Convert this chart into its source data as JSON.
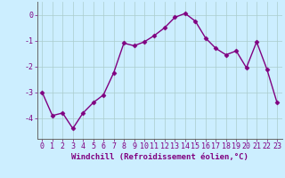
{
  "x": [
    0,
    1,
    2,
    3,
    4,
    5,
    6,
    7,
    8,
    9,
    10,
    11,
    12,
    13,
    14,
    15,
    16,
    17,
    18,
    19,
    20,
    21,
    22,
    23
  ],
  "y": [
    -3.0,
    -3.9,
    -3.8,
    -4.4,
    -3.8,
    -3.4,
    -3.1,
    -2.25,
    -1.1,
    -1.2,
    -1.05,
    -0.8,
    -0.5,
    -0.1,
    0.05,
    -0.25,
    -0.9,
    -1.3,
    -1.55,
    -1.4,
    -2.05,
    -1.05,
    -2.1,
    -3.4
  ],
  "line_color": "#800080",
  "marker": "D",
  "marker_size": 2.5,
  "bg_color": "#cceeff",
  "grid_color": "#aacccc",
  "xlabel": "Windchill (Refroidissement éolien,°C)",
  "xlabel_fontsize": 6.5,
  "tick_fontsize": 6,
  "yticks": [
    0,
    -1,
    -2,
    -3,
    -4
  ],
  "ylim": [
    -4.8,
    0.5
  ],
  "xlim": [
    -0.5,
    23.5
  ],
  "line_width": 1.0
}
